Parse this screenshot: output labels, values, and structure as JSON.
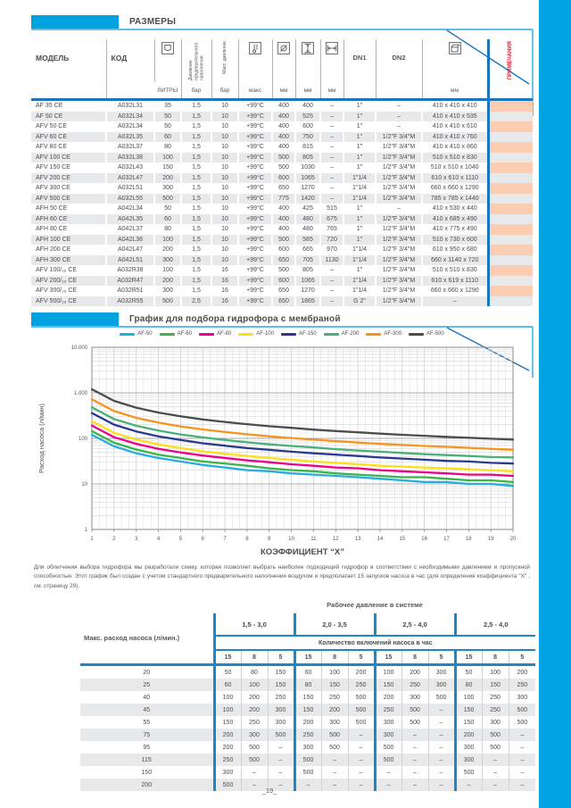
{
  "page": {
    "accent_color": "#00A3E0",
    "footer_text": "_19_"
  },
  "sections": {
    "dimensions": {
      "title": "РАЗМЕРЫ"
    },
    "chart": {
      "title": "График для подбора гидрофора с мембраной"
    }
  },
  "dim_table": {
    "headers": {
      "model": "МОДЕЛЬ",
      "code": "КОД",
      "prefill_pressure": "Давление предварительного наполнения",
      "max_pressure": "Макс. давление",
      "dn1": "DN1",
      "dn2": "DN2",
      "notes": "ПРИМЕЧАНИЯ"
    },
    "header_icons": [
      "tank-icon",
      "thermometer-icon",
      "diameter-icon",
      "height-icon",
      "width-icon",
      "package-icon"
    ],
    "units": {
      "litres": "ЛИТРЫ",
      "bar1": "бар",
      "bar2": "бар",
      "temp": "макс",
      "mm1": "мм",
      "mm2": "мм",
      "mm3": "мм",
      "mm4": "мм"
    },
    "rows": [
      [
        "AF 35 CE",
        "A032L31",
        "35",
        "1,5",
        "10",
        "+99°C",
        "400",
        "400",
        "–",
        "1\"",
        "–",
        "410 x 410 x 410"
      ],
      [
        "AF 50 CE",
        "A032L34",
        "50",
        "1,5",
        "10",
        "+99°C",
        "400",
        "525",
        "–",
        "1\"",
        "–",
        "410 x 410 x 535"
      ],
      [
        "AFV 50 CE",
        "A032L34",
        "50",
        "1,5",
        "10",
        "+99°C",
        "400",
        "600",
        "–",
        "1\"",
        "–",
        "410 x 410 x 610"
      ],
      [
        "AFV 60 CE",
        "A032L35",
        "60",
        "1,5",
        "10",
        "+99°C",
        "400",
        "750",
        "–",
        "1\"",
        "1/2\"F 3/4\"M",
        "410 x 410 x 760"
      ],
      [
        "AFV 80 CE",
        "A032L37",
        "80",
        "1,5",
        "10",
        "+99°C",
        "400",
        "815",
        "–",
        "1\"",
        "1/2\"F 3/4\"M",
        "410 x 410 x 860"
      ],
      [
        "AFV 100 CE",
        "A032L38",
        "100",
        "1,5",
        "10",
        "+99°C",
        "500",
        "805",
        "–",
        "1\"",
        "1/2\"F 3/4\"M",
        "510 x 510 x 830"
      ],
      [
        "AFV 150 CE",
        "A032L43",
        "150",
        "1,5",
        "10",
        "+99°C",
        "500",
        "1030",
        "–",
        "1\"",
        "1/2\"F 3/4\"M",
        "510 x 510 x 1040"
      ],
      [
        "AFV 200 CE",
        "A032L47",
        "200",
        "1,5",
        "10",
        "+99°C",
        "600",
        "1065",
        "–",
        "1\"1/4",
        "1/2\"F 3/4\"M",
        "610 x 610 x 1110"
      ],
      [
        "AFV 300 CE",
        "A032L51",
        "300",
        "1,5",
        "10",
        "+99°C",
        "650",
        "1270",
        "–",
        "1\"1/4",
        "1/2\"F 3/4\"M",
        "660 x 660 x 1290"
      ],
      [
        "AFV 500 CE",
        "A032L55",
        "500",
        "1,5",
        "10",
        "+99°C",
        "775",
        "1420",
        "–",
        "1\"1/4",
        "1/2\"F 3/4\"M",
        "785 x 785 x 1440"
      ],
      [
        "AFH 50 CE",
        "A042L34",
        "50",
        "1,5",
        "10",
        "+99°C",
        "400",
        "425",
        "515",
        "1\"",
        "–",
        "410 x 530 x 440"
      ],
      [
        "AFH 60 CE",
        "A042L35",
        "60",
        "1,5",
        "10",
        "+99°C",
        "400",
        "480",
        "675",
        "1\"",
        "1/2\"F 3/4\"M",
        "410 x 685 x 490"
      ],
      [
        "AFH 80 CE",
        "A042L37",
        "80",
        "1,5",
        "10",
        "+99°C",
        "400",
        "480",
        "765",
        "1\"",
        "1/2\"F 3/4\"M",
        "410 x 775 x 490"
      ],
      [
        "AFH 100 CE",
        "A042L38",
        "100",
        "1,5",
        "10",
        "+99°C",
        "500",
        "585",
        "720",
        "1\"",
        "1/2\"F 3/4\"M",
        "510 x 730 x 600"
      ],
      [
        "AFH 200 CE",
        "A042L47",
        "200",
        "1,5",
        "10",
        "+99°C",
        "600",
        "665",
        "970",
        "1\"1/4",
        "1/2\"F 3/4\"M",
        "610 x 950 x 680"
      ],
      [
        "AFH 300 CE",
        "A042L51",
        "300",
        "1,5",
        "10",
        "+99°C",
        "650",
        "705",
        "1130",
        "1\"1/4",
        "1/2\"F 3/4\"M",
        "660 x 1140 x 720"
      ],
      [
        "AFV 100/₁₆ CE",
        "A032R38",
        "100",
        "1,5",
        "16",
        "+99°C",
        "500",
        "805",
        "–",
        "1\"",
        "1/2\"F 3/4\"M",
        "510 x 510 x 830"
      ],
      [
        "AFV 200/₁₆ CE",
        "A032R47",
        "200",
        "1,5",
        "16",
        "+99°C",
        "600",
        "1065",
        "–",
        "1\"1/4",
        "1/2\"F 3/4\"M",
        "610 x 619 x 1110"
      ],
      [
        "AFV 300/₁₆ CE",
        "A032R51",
        "300",
        "1,5",
        "16",
        "+99°C",
        "650",
        "1270",
        "–",
        "1\"1/4",
        "1/2\"F 3/4\"M",
        "660 x 660 x 1290"
      ],
      [
        "AFV 500/₁₆ CE",
        "A032R55",
        "500",
        "2,5",
        "16",
        "+99°C",
        "650",
        "1865",
        "–",
        "G 2\"",
        "1/2\"F 3/4\"M",
        "–"
      ]
    ]
  },
  "chart_data": {
    "type": "line",
    "title": "График для подбора гидрофора с мембраной",
    "xlabel": "КОЭФФИЦИЕНТ \"X\"",
    "ylabel": "Расход насоса (л/мин)",
    "y_scale": "log",
    "ylim": [
      1,
      10000
    ],
    "y_tick_labels": [
      "1",
      "10",
      "100",
      "1.000",
      "10.000"
    ],
    "x": [
      1,
      2,
      3,
      4,
      5,
      6,
      7,
      8,
      9,
      10,
      11,
      12,
      13,
      14,
      15,
      16,
      17,
      18,
      19,
      20
    ],
    "legend_position": "top",
    "grid": true,
    "series": [
      {
        "name": "AF-50",
        "color": "#29ABE2",
        "values": [
          120,
          67,
          47,
          37,
          31,
          26,
          23,
          20,
          19,
          17,
          16,
          15,
          14,
          13,
          12,
          11,
          11,
          10,
          10,
          9
        ]
      },
      {
        "name": "AF-60",
        "color": "#39B54A",
        "values": [
          144,
          80,
          57,
          44,
          37,
          31,
          28,
          25,
          22,
          20,
          19,
          17,
          16,
          15,
          14,
          14,
          13,
          12,
          12,
          11
        ]
      },
      {
        "name": "AF-80",
        "color": "#EC008C",
        "values": [
          192,
          106,
          76,
          59,
          49,
          42,
          37,
          33,
          30,
          27,
          25,
          23,
          22,
          20,
          19,
          18,
          17,
          16,
          16,
          15
        ]
      },
      {
        "name": "AF-100",
        "color": "#FFDE17",
        "values": [
          240,
          133,
          94,
          74,
          61,
          52,
          46,
          41,
          37,
          34,
          31,
          29,
          27,
          25,
          24,
          23,
          22,
          21,
          20,
          19
        ]
      },
      {
        "name": "AF-150",
        "color": "#2B3990",
        "values": [
          360,
          200,
          142,
          111,
          92,
          78,
          69,
          61,
          56,
          51,
          47,
          44,
          41,
          38,
          36,
          34,
          32,
          31,
          29,
          28
        ]
      },
      {
        "name": "AF-200",
        "color": "#4BAF78",
        "values": [
          480,
          266,
          189,
          148,
          122,
          105,
          92,
          82,
          74,
          68,
          63,
          58,
          54,
          51,
          48,
          45,
          43,
          41,
          39,
          38
        ]
      },
      {
        "name": "AF-300",
        "color": "#F7941D",
        "values": [
          720,
          399,
          283,
          222,
          183,
          157,
          138,
          123,
          111,
          102,
          94,
          87,
          81,
          76,
          72,
          68,
          65,
          62,
          59,
          56
        ]
      },
      {
        "name": "AF-500",
        "color": "#4D4D4D",
        "values": [
          1200,
          666,
          472,
          369,
          306,
          261,
          229,
          205,
          185,
          170,
          156,
          145,
          136,
          127,
          120,
          114,
          108,
          103,
          98,
          94
        ]
      }
    ]
  },
  "note_text": "Для облегчения выбора гидрофора мы разработали схему, которая позволяет выбрать наиболее подходящий гидрофор в соответствии с необходимыми давлением и пропускной способностью. Этот график был создан с учетом стандартного предварительного наполнения воздухом и предполагает 15 запусков насоса в час (для определения коэффициента \"X\" , см. страницу 29).",
  "pressure_table": {
    "title": "Рабочее давление в системе",
    "left_header": "Макс. расход насоса (л/мин.)",
    "groups": [
      "1,5 - 3,0",
      "2,0 - 3,5",
      "2,5 - 4,0",
      "2,5 - 4,0"
    ],
    "starts_header": "Количество включений насоса в час",
    "starts": [
      "15",
      "8",
      "5"
    ],
    "rows": [
      {
        "flow": "20",
        "values": [
          "50",
          "80",
          "150",
          "60",
          "100",
          "200",
          "100",
          "200",
          "300",
          "50",
          "100",
          "200"
        ]
      },
      {
        "flow": "25",
        "values": [
          "60",
          "100",
          "150",
          "80",
          "150",
          "250",
          "150",
          "250",
          "300",
          "80",
          "150",
          "250"
        ]
      },
      {
        "flow": "40",
        "values": [
          "100",
          "200",
          "250",
          "150",
          "250",
          "500",
          "200",
          "300",
          "500",
          "100",
          "250",
          "300"
        ]
      },
      {
        "flow": "45",
        "values": [
          "100",
          "200",
          "300",
          "150",
          "200",
          "500",
          "250",
          "500",
          "–",
          "150",
          "250",
          "500"
        ]
      },
      {
        "flow": "55",
        "values": [
          "150",
          "250",
          "300",
          "200",
          "300",
          "500",
          "300",
          "500",
          "–",
          "150",
          "300",
          "500"
        ]
      },
      {
        "flow": "75",
        "values": [
          "200",
          "300",
          "500",
          "250",
          "500",
          "–",
          "300",
          "–",
          "–",
          "200",
          "500",
          "–"
        ]
      },
      {
        "flow": "95",
        "values": [
          "200",
          "500",
          "–",
          "300",
          "500",
          "–",
          "500",
          "–",
          "–",
          "300",
          "500",
          "–"
        ]
      },
      {
        "flow": "115",
        "values": [
          "250",
          "500",
          "–",
          "500",
          "–",
          "–",
          "500",
          "–",
          "–",
          "300",
          "–",
          "–"
        ]
      },
      {
        "flow": "150",
        "values": [
          "300",
          "–",
          "–",
          "500",
          "–",
          "–",
          "–",
          "–",
          "–",
          "500",
          "–",
          "–"
        ]
      },
      {
        "flow": "200",
        "values": [
          "500",
          "–",
          "–",
          "–",
          "–",
          "–",
          "–",
          "–",
          "–",
          "–",
          "–",
          "–"
        ]
      }
    ]
  }
}
